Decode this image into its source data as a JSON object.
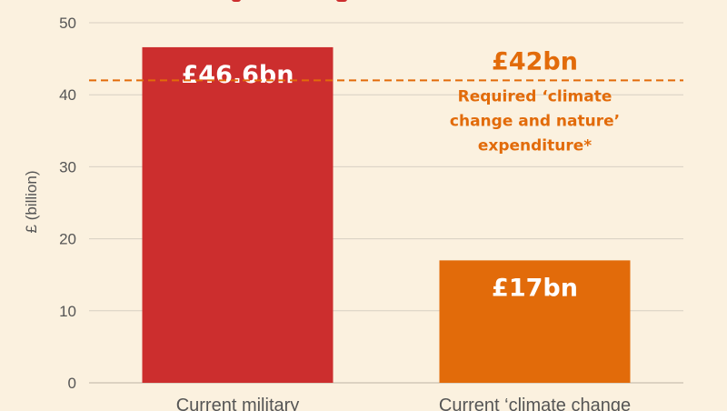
{
  "chart_data": {
    "type": "bar",
    "title": "",
    "xlabel": "",
    "ylabel": "£ (billion)",
    "ylim": [
      0,
      50
    ],
    "yticks": [
      0,
      10,
      20,
      30,
      40,
      50
    ],
    "grid": true,
    "categories": [
      "Current military",
      "Current ‘climate change"
    ],
    "values": [
      46.6,
      17
    ],
    "data_labels": [
      "£46.6bn",
      "£17bn"
    ],
    "bar_colors": [
      "#cc2e2e",
      "#e26b0a"
    ],
    "reference_line": {
      "value": 42,
      "label": "£42bn",
      "description": [
        "Required ‘climate",
        "change and nature’",
        "expenditure*"
      ],
      "color": "#e26b0a",
      "style": "dashed"
    }
  }
}
